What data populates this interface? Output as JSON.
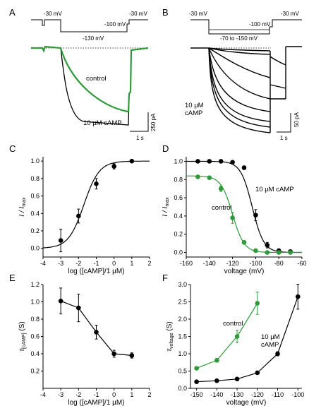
{
  "colors": {
    "control": "#2e9a3a",
    "camp": "#000000"
  },
  "panels": {
    "A": {
      "label": "A",
      "protocol_labels": [
        "-30 mV",
        "-130 mV",
        "-100 mV",
        "-30 mV"
      ],
      "trace_labels": {
        "control": "control",
        "camp": "10 µM cAMP"
      },
      "scale": {
        "current": "250 pA",
        "time": "1 s"
      }
    },
    "B": {
      "label": "B",
      "protocol_labels": [
        "-30 mV",
        "-70 to -150 mV",
        "-100 mV",
        "-30 mV"
      ],
      "trace_label_lines": [
        "10 µM",
        "cAMP"
      ],
      "scale": {
        "current": "50 pA",
        "time": "1 s"
      }
    }
  },
  "chart_data": [
    {
      "panel": "C",
      "type": "scatter",
      "xlabel": "log ([cAMP]/1 µM)",
      "ylabel_main": "I / I",
      "ylabel_sub": "max",
      "xlim": [
        -4,
        2
      ],
      "ylim": [
        -0.1,
        1.05
      ],
      "xticks": [
        -4,
        -3,
        -2,
        -1,
        0,
        1,
        2
      ],
      "yticks": [
        0.0,
        0.2,
        0.4,
        0.6,
        0.8,
        1.0
      ],
      "series": [
        {
          "color": "#000000",
          "x": [
            -3,
            -2,
            -1,
            0,
            1
          ],
          "y": [
            0.09,
            0.37,
            0.74,
            0.94,
            1.0
          ],
          "err": [
            0.13,
            0.08,
            0.06,
            0.03,
            0.01
          ]
        }
      ],
      "fit": {
        "model": "hill",
        "x_half": -1.7,
        "slope": 1.0
      }
    },
    {
      "panel": "D",
      "type": "scatter",
      "xlabel": "voltage (mV)",
      "ylabel_main": "I / I",
      "ylabel_sub": "max",
      "xlim": [
        -160,
        -60
      ],
      "ylim": [
        -0.05,
        1.05
      ],
      "xticks": [
        -160,
        -140,
        -120,
        -100,
        -80,
        -60
      ],
      "yticks": [
        0.0,
        0.2,
        0.4,
        0.6,
        0.8,
        1.0
      ],
      "series": [
        {
          "name": "10 µM cAMP",
          "color": "#000000",
          "x": [
            -150,
            -140,
            -130,
            -120,
            -110,
            -100,
            -90,
            -80,
            -70
          ],
          "y": [
            1.0,
            1.0,
            1.0,
            0.99,
            0.93,
            0.41,
            0.08,
            0.02,
            0.01
          ],
          "err": [
            0.01,
            0.01,
            0.01,
            0.01,
            0.02,
            0.06,
            0.03,
            0.01,
            0.01
          ]
        },
        {
          "name": "control",
          "color": "#2e9a3a",
          "x": [
            -150,
            -140,
            -130,
            -120,
            -110,
            -100,
            -90,
            -80,
            -70
          ],
          "y": [
            0.83,
            0.82,
            0.7,
            0.38,
            0.11,
            0.02,
            0.0,
            0.0,
            0.0
          ],
          "err": [
            0.01,
            0.01,
            0.03,
            0.06,
            0.02,
            0.01,
            0.01,
            0.01,
            0.01
          ]
        }
      ],
      "fits": [
        {
          "color": "#000000",
          "v_half": -103,
          "k": 5,
          "amp": 1.0
        },
        {
          "color": "#2e9a3a",
          "v_half": -120,
          "k": 5,
          "amp": 0.84
        }
      ]
    },
    {
      "panel": "E",
      "type": "line",
      "xlabel": "log ([cAMP]/1 µM)",
      "ylabel_main": "τ",
      "ylabel_sub": "[cAMP]",
      "ylabel_unit": " (S)",
      "xlim": [
        -4,
        2
      ],
      "ylim": [
        0.0,
        1.2
      ],
      "xticks": [
        -4,
        -3,
        -2,
        -1,
        0,
        1,
        2
      ],
      "yticks": [
        0.2,
        0.4,
        0.6,
        0.8,
        1.0,
        1.2
      ],
      "series": [
        {
          "color": "#000000",
          "x": [
            -3,
            -2,
            -1,
            0,
            1
          ],
          "y": [
            1.01,
            0.93,
            0.65,
            0.4,
            0.38
          ],
          "err": [
            0.15,
            0.16,
            0.08,
            0.04,
            0.03
          ]
        }
      ]
    },
    {
      "panel": "F",
      "type": "line",
      "xlabel": "voltage (mV)",
      "ylabel_main": "τ",
      "ylabel_sub": "voltage",
      "ylabel_unit": " (S)",
      "xlim": [
        -153,
        -98
      ],
      "ylim": [
        0.0,
        3.0
      ],
      "xticks": [
        -150,
        -140,
        -130,
        -120,
        -110,
        -100
      ],
      "yticks": [
        0.0,
        0.5,
        1.0,
        1.5,
        2.0,
        2.5,
        3.0
      ],
      "series": [
        {
          "name": "control",
          "color": "#2e9a3a",
          "x": [
            -150,
            -140,
            -130,
            -120
          ],
          "y": [
            0.58,
            0.81,
            1.5,
            2.46
          ],
          "err": [
            0.04,
            0.05,
            0.18,
            0.32
          ]
        },
        {
          "name_lines": [
            "10 µM",
            "cAMP"
          ],
          "color": "#000000",
          "x": [
            -150,
            -140,
            -130,
            -120,
            -110,
            -100
          ],
          "y": [
            0.19,
            0.22,
            0.27,
            0.45,
            1.0,
            2.65
          ],
          "err": [
            0.02,
            0.02,
            0.03,
            0.04,
            0.06,
            0.36
          ]
        }
      ]
    }
  ]
}
